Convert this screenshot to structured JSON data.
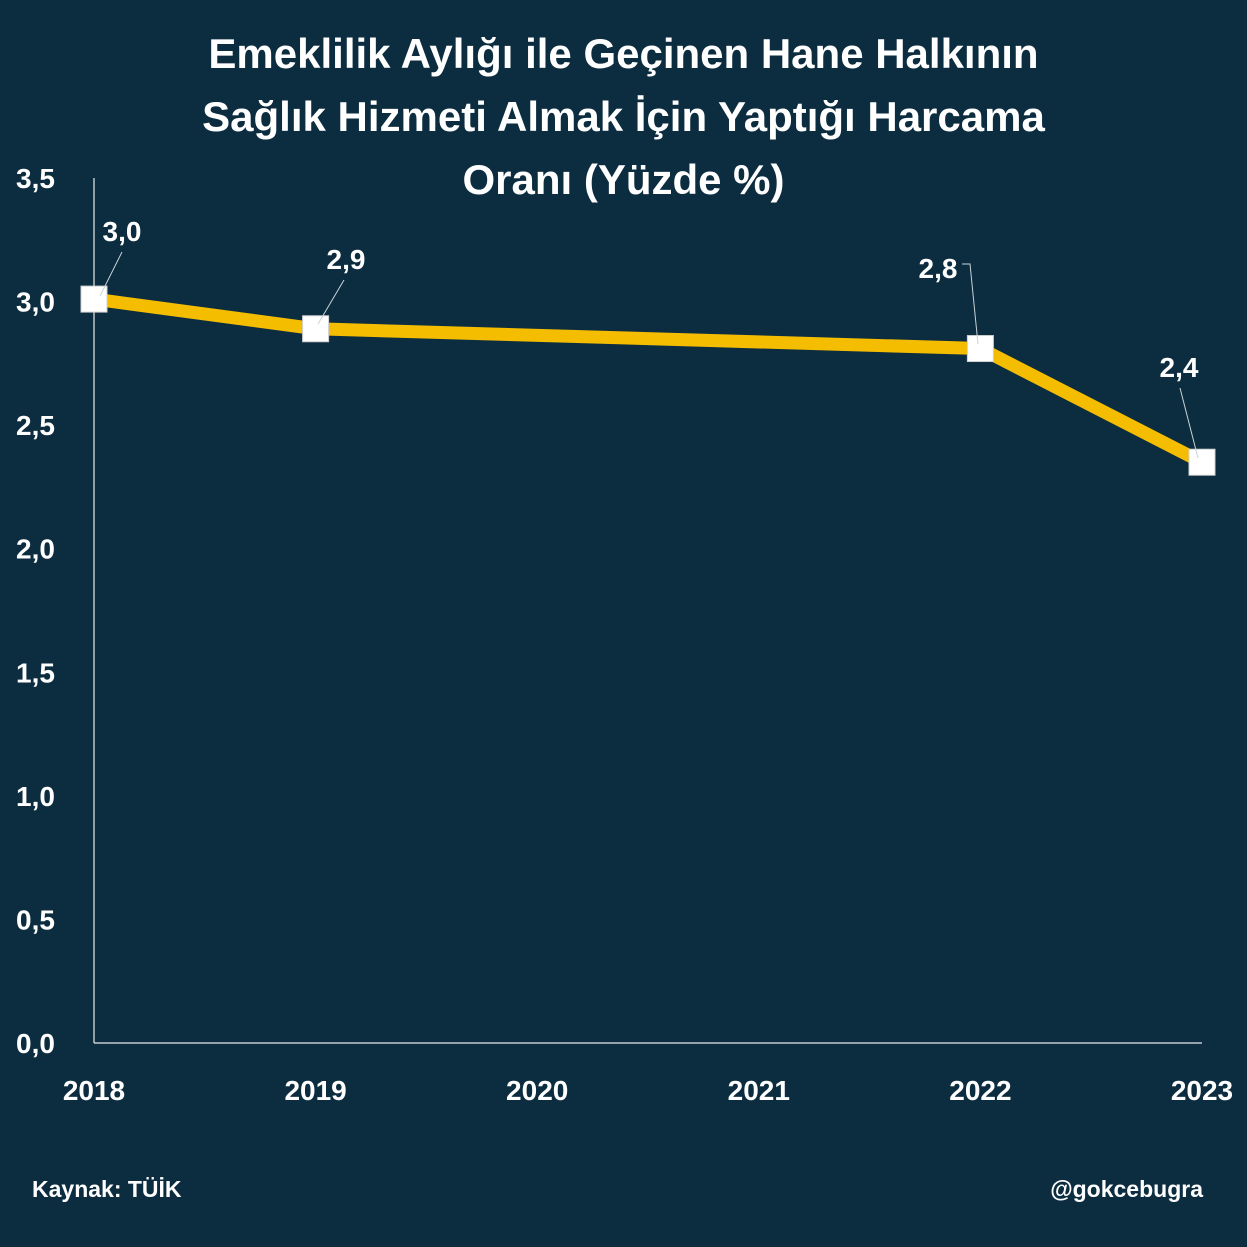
{
  "title_lines": [
    "Emeklilik Aylığı ile Geçinen Hane Halkının",
    "Sağlık Hizmeti Almak İçin Yaptığı Harcama",
    "Oranı (Yüzde %)"
  ],
  "source": "Kaynak: TÜİK",
  "handle": "@gokcebugra",
  "colors": {
    "background": "#0c2d40",
    "line": "#f5bd00",
    "marker": "#ffffff",
    "text": "#ffffff"
  },
  "chart_data": {
    "type": "line",
    "title": "Emeklilik Aylığı ile Geçinen Hane Halkının Sağlık Hizmeti Almak İçin Yaptığı Harcama Oranı (Yüzde %)",
    "categories": [
      "2018",
      "2019",
      "2020",
      "2021",
      "2022",
      "2023"
    ],
    "x_tick_labels": [
      "2018",
      "2019",
      "2020",
      "2021",
      "2022",
      "2023"
    ],
    "ylim": [
      0,
      3.5
    ],
    "y_ticks": [
      0,
      0.5,
      1.0,
      1.5,
      2.0,
      2.5,
      3.0,
      3.5
    ],
    "y_tick_labels": [
      "0,0",
      "0,5",
      "1,0",
      "1,5",
      "2,0",
      "2,5",
      "3,0",
      "3,5"
    ],
    "grid": false,
    "series": [
      {
        "points": [
          {
            "x": "2018",
            "y": 3.01,
            "label": "3,0"
          },
          {
            "x": "2019",
            "y": 2.89,
            "label": "2,9"
          },
          {
            "x": "2022",
            "y": 2.81,
            "label": "2,8"
          },
          {
            "x": "2023",
            "y": 2.35,
            "label": "2,4"
          }
        ]
      }
    ]
  }
}
